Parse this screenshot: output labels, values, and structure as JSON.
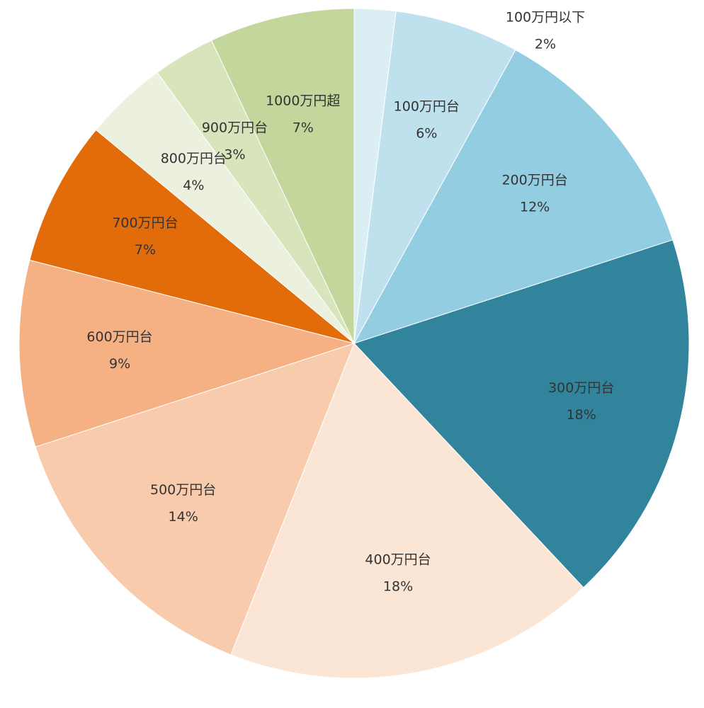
{
  "chart_data": {
    "type": "pie",
    "categories": [
      "100万円以下",
      "100万円台",
      "200万円台",
      "300万円台",
      "400万円台",
      "500万円台",
      "600万円台",
      "700万円台",
      "800万円台",
      "900万円台",
      "1000万円超"
    ],
    "values": [
      2,
      6,
      12,
      18,
      18,
      14,
      9,
      7,
      4,
      3,
      7
    ],
    "value_labels": [
      "2%",
      "6%",
      "12%",
      "18%",
      "18%",
      "14%",
      "9%",
      "7%",
      "4%",
      "3%",
      "7%"
    ],
    "colors": [
      "#daeef4",
      "#bfe1ee",
      "#93cde1",
      "#31849b",
      "#fbe6d6",
      "#f8cbad",
      "#f5b183",
      "#e26b0a",
      "#ebf1de",
      "#d7e4bc",
      "#c3d69b"
    ]
  }
}
